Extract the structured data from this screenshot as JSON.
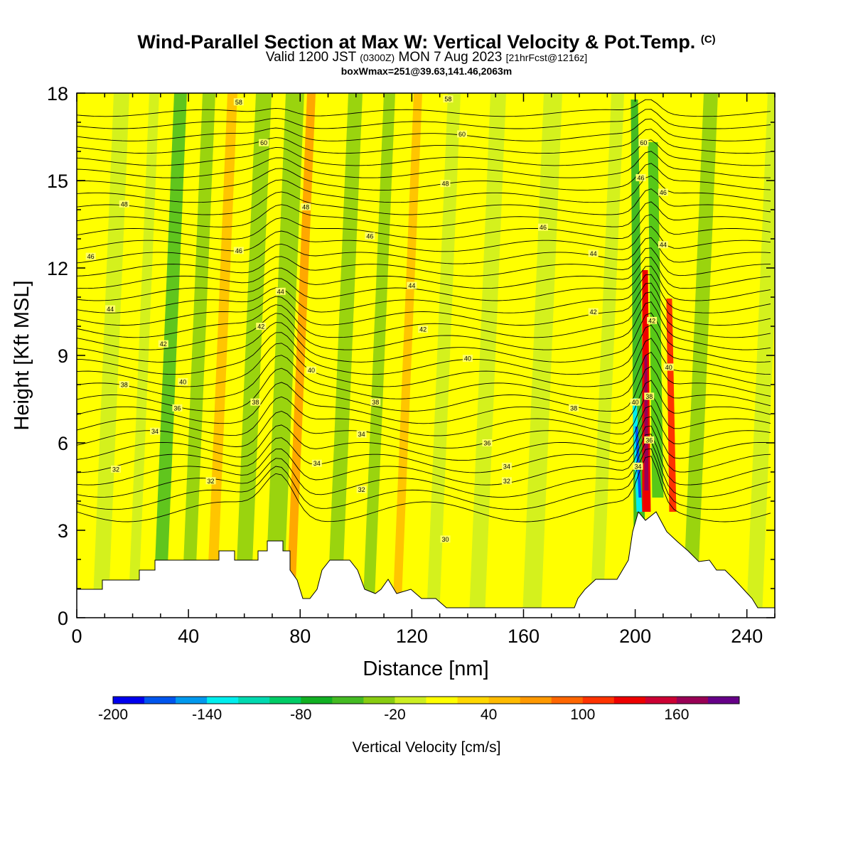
{
  "title_line1": "Wind-Parallel Section at Max W: Vertical Velocity & Pot.Temp.",
  "title_copyright": "(C)",
  "title_line2": {
    "valid": "Valid 1200 JST",
    "utc": "(0300Z)",
    "date": "MON 7 Aug 2023",
    "forecast": "[21hrFcst@1216z]"
  },
  "title_line3": "boxWmax=251@39.63,141.46,2063m",
  "chart_data": {
    "type": "heatmap",
    "xlabel": "Distance [nm]",
    "ylabel": "Height [Kft MSL]",
    "xlim": [
      0,
      250
    ],
    "ylim": [
      0,
      18
    ],
    "xticks": [
      0,
      40,
      80,
      120,
      160,
      200,
      240
    ],
    "yticks": [
      0,
      3,
      6,
      9,
      12,
      15,
      18
    ],
    "colorbar": {
      "label": "Vertical Velocity [cm/s]",
      "range": [
        -200,
        200
      ],
      "tick_labels": [
        -200,
        -140,
        -80,
        -20,
        40,
        100,
        160
      ],
      "colors": [
        "#0000ee",
        "#0055ee",
        "#0099ee",
        "#00eeee",
        "#00d9b0",
        "#00cc66",
        "#11b022",
        "#44bb22",
        "#88cc11",
        "#ccee22",
        "#ffff00",
        "#ffd700",
        "#ffbb00",
        "#ff9900",
        "#ff6600",
        "#ff3300",
        "#ee0000",
        "#cc0033",
        "#990055",
        "#660088"
      ]
    },
    "contour_labels": [
      {
        "x": 58,
        "y": 17.7,
        "label": "58"
      },
      {
        "x": 133,
        "y": 17.8,
        "label": "58"
      },
      {
        "x": 138,
        "y": 16.6,
        "label": "60"
      },
      {
        "x": 67,
        "y": 16.3,
        "label": "60"
      },
      {
        "x": 203,
        "y": 16.3,
        "label": "60"
      },
      {
        "x": 17,
        "y": 14.2,
        "label": "48"
      },
      {
        "x": 82,
        "y": 14.1,
        "label": "48"
      },
      {
        "x": 132,
        "y": 14.9,
        "label": "48"
      },
      {
        "x": 167,
        "y": 13.4,
        "label": "46"
      },
      {
        "x": 202,
        "y": 15.1,
        "label": "46"
      },
      {
        "x": 210,
        "y": 14.6,
        "label": "46"
      },
      {
        "x": 105,
        "y": 13.1,
        "label": "46"
      },
      {
        "x": 5,
        "y": 12.4,
        "label": "46"
      },
      {
        "x": 58,
        "y": 12.6,
        "label": "46"
      },
      {
        "x": 185,
        "y": 12.5,
        "label": "44"
      },
      {
        "x": 210,
        "y": 12.8,
        "label": "44"
      },
      {
        "x": 12,
        "y": 10.6,
        "label": "44"
      },
      {
        "x": 73,
        "y": 11.2,
        "label": "44"
      },
      {
        "x": 120,
        "y": 11.4,
        "label": "44"
      },
      {
        "x": 185,
        "y": 10.5,
        "label": "42"
      },
      {
        "x": 206,
        "y": 10.2,
        "label": "42"
      },
      {
        "x": 31,
        "y": 9.4,
        "label": "42"
      },
      {
        "x": 66,
        "y": 10,
        "label": "42"
      },
      {
        "x": 124,
        "y": 9.9,
        "label": "42"
      },
      {
        "x": 84,
        "y": 8.5,
        "label": "40"
      },
      {
        "x": 140,
        "y": 8.9,
        "label": "40"
      },
      {
        "x": 212,
        "y": 8.6,
        "label": "40"
      },
      {
        "x": 38,
        "y": 8.1,
        "label": "40"
      },
      {
        "x": 17,
        "y": 8.0,
        "label": "38"
      },
      {
        "x": 36,
        "y": 7.2,
        "label": "36"
      },
      {
        "x": 64,
        "y": 7.4,
        "label": "38"
      },
      {
        "x": 107,
        "y": 7.4,
        "label": "38"
      },
      {
        "x": 178,
        "y": 7.2,
        "label": "38"
      },
      {
        "x": 205,
        "y": 7.6,
        "label": "38"
      },
      {
        "x": 200,
        "y": 7.4,
        "label": "40"
      },
      {
        "x": 28,
        "y": 6.4,
        "label": "34"
      },
      {
        "x": 102,
        "y": 6.3,
        "label": "34"
      },
      {
        "x": 147,
        "y": 6.0,
        "label": "36"
      },
      {
        "x": 205,
        "y": 6.1,
        "label": "36"
      },
      {
        "x": 86,
        "y": 5.3,
        "label": "34"
      },
      {
        "x": 154,
        "y": 5.2,
        "label": "34"
      },
      {
        "x": 201,
        "y": 5.2,
        "label": "34"
      },
      {
        "x": 14,
        "y": 5.1,
        "label": "32"
      },
      {
        "x": 48,
        "y": 4.7,
        "label": "32"
      },
      {
        "x": 154,
        "y": 4.7,
        "label": "32"
      },
      {
        "x": 102,
        "y": 4.4,
        "label": "32"
      },
      {
        "x": 132,
        "y": 2.7,
        "label": "30"
      }
    ]
  }
}
